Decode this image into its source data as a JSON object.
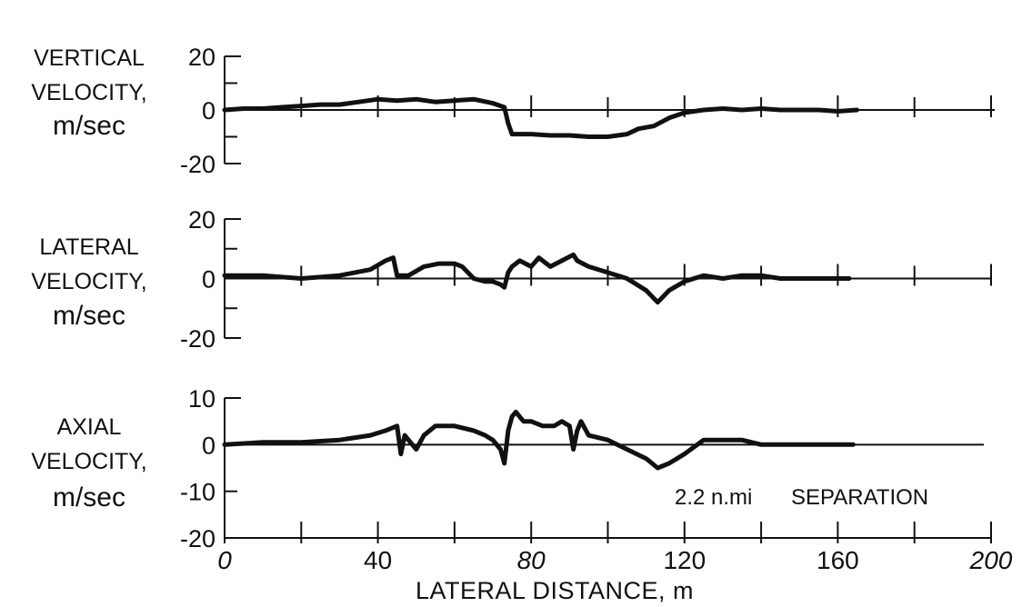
{
  "chart_data": [
    {
      "type": "line",
      "ylabel": [
        "VERTICAL",
        "VELOCITY,",
        "m/sec"
      ],
      "ylim": [
        -20,
        20
      ],
      "yticks": [
        20,
        10,
        0,
        -10,
        -20
      ],
      "ytick_labels": [
        "20",
        "0",
        "-20"
      ],
      "xlim": [
        0,
        200
      ],
      "xticks": [
        20,
        40,
        60,
        80,
        100,
        120,
        140,
        160,
        180,
        200
      ],
      "grid": false,
      "series": [
        {
          "x": [
            0,
            5,
            10,
            15,
            20,
            25,
            30,
            35,
            40,
            45,
            50,
            55,
            60,
            65,
            70,
            73,
            74,
            75,
            80,
            85,
            90,
            95,
            100,
            105,
            108,
            112,
            116,
            120,
            125,
            130,
            135,
            140,
            145,
            150,
            155,
            160,
            165
          ],
          "y": [
            0,
            0.5,
            0.5,
            1,
            1.5,
            2,
            2,
            3,
            4,
            3.5,
            4,
            3,
            3.5,
            4,
            2.5,
            1,
            -5,
            -9,
            -9,
            -9.5,
            -9.5,
            -10,
            -10,
            -9,
            -7,
            -6,
            -3,
            -1,
            0,
            0.5,
            0,
            0.5,
            0,
            0,
            0,
            -0.5,
            0
          ]
        }
      ]
    },
    {
      "type": "line",
      "ylabel": [
        "LATERAL",
        "VELOCITY,",
        "m/sec"
      ],
      "ylim": [
        -20,
        20
      ],
      "yticks": [
        20,
        10,
        0,
        -10,
        -20
      ],
      "ytick_labels": [
        "20",
        "0",
        "-20"
      ],
      "xlim": [
        0,
        200
      ],
      "xticks": [
        20,
        40,
        60,
        80,
        100,
        120,
        140,
        160,
        180,
        200
      ],
      "grid": false,
      "series": [
        {
          "x": [
            0,
            10,
            20,
            30,
            38,
            42,
            44,
            45,
            48,
            52,
            56,
            60,
            62,
            65,
            68,
            70,
            72,
            73,
            74,
            75,
            77,
            80,
            82,
            85,
            88,
            91,
            92,
            95,
            100,
            105,
            110,
            113,
            116,
            120,
            125,
            130,
            135,
            140,
            145,
            150,
            155,
            160,
            163
          ],
          "y": [
            1,
            1,
            0,
            1,
            3,
            6,
            7,
            1,
            1,
            4,
            5,
            5,
            4,
            0,
            -1,
            -1,
            -2,
            -3,
            2,
            4,
            6,
            4,
            7,
            4,
            6,
            8,
            6,
            4,
            2,
            0,
            -4,
            -8,
            -4,
            -1,
            1,
            0,
            1,
            1,
            0,
            0,
            0,
            0,
            0
          ]
        }
      ]
    },
    {
      "type": "line",
      "ylabel": [
        "AXIAL",
        "VELOCITY,",
        "m/sec"
      ],
      "ylim": [
        -20,
        10
      ],
      "yticks": [
        10,
        0,
        -10,
        -20
      ],
      "ytick_labels": [
        "10",
        "0",
        "-10",
        "-20"
      ],
      "xlim": [
        0,
        200
      ],
      "xticks": [
        20,
        40,
        60,
        80,
        100,
        120,
        140,
        160,
        180,
        200
      ],
      "xtick_labels": [
        "0",
        "40",
        "80",
        "120",
        "160",
        "200"
      ],
      "xlabel": "LATERAL DISTANCE,  m",
      "annotation": {
        "number": "2.2 n.mi",
        "text": "SEPARATION"
      },
      "grid": false,
      "series": [
        {
          "x": [
            0,
            10,
            20,
            30,
            38,
            42,
            45,
            46,
            47,
            50,
            52,
            55,
            60,
            65,
            68,
            70,
            72,
            73,
            74,
            75,
            76,
            78,
            80,
            83,
            86,
            88,
            90,
            91,
            92,
            93,
            95,
            100,
            105,
            110,
            113,
            116,
            120,
            125,
            130,
            135,
            140,
            145,
            150,
            155,
            160,
            164
          ],
          "y": [
            0,
            0.5,
            0.5,
            1,
            2,
            3,
            4,
            -2,
            2,
            -1,
            2,
            4,
            4,
            3,
            2,
            1,
            -1,
            -4,
            3,
            6,
            7,
            5,
            5,
            4,
            4,
            5,
            4,
            -1,
            3,
            5,
            2,
            1,
            -1,
            -3,
            -5,
            -4,
            -2,
            1,
            1,
            1,
            0,
            0,
            0,
            0,
            0,
            0
          ]
        }
      ]
    }
  ]
}
